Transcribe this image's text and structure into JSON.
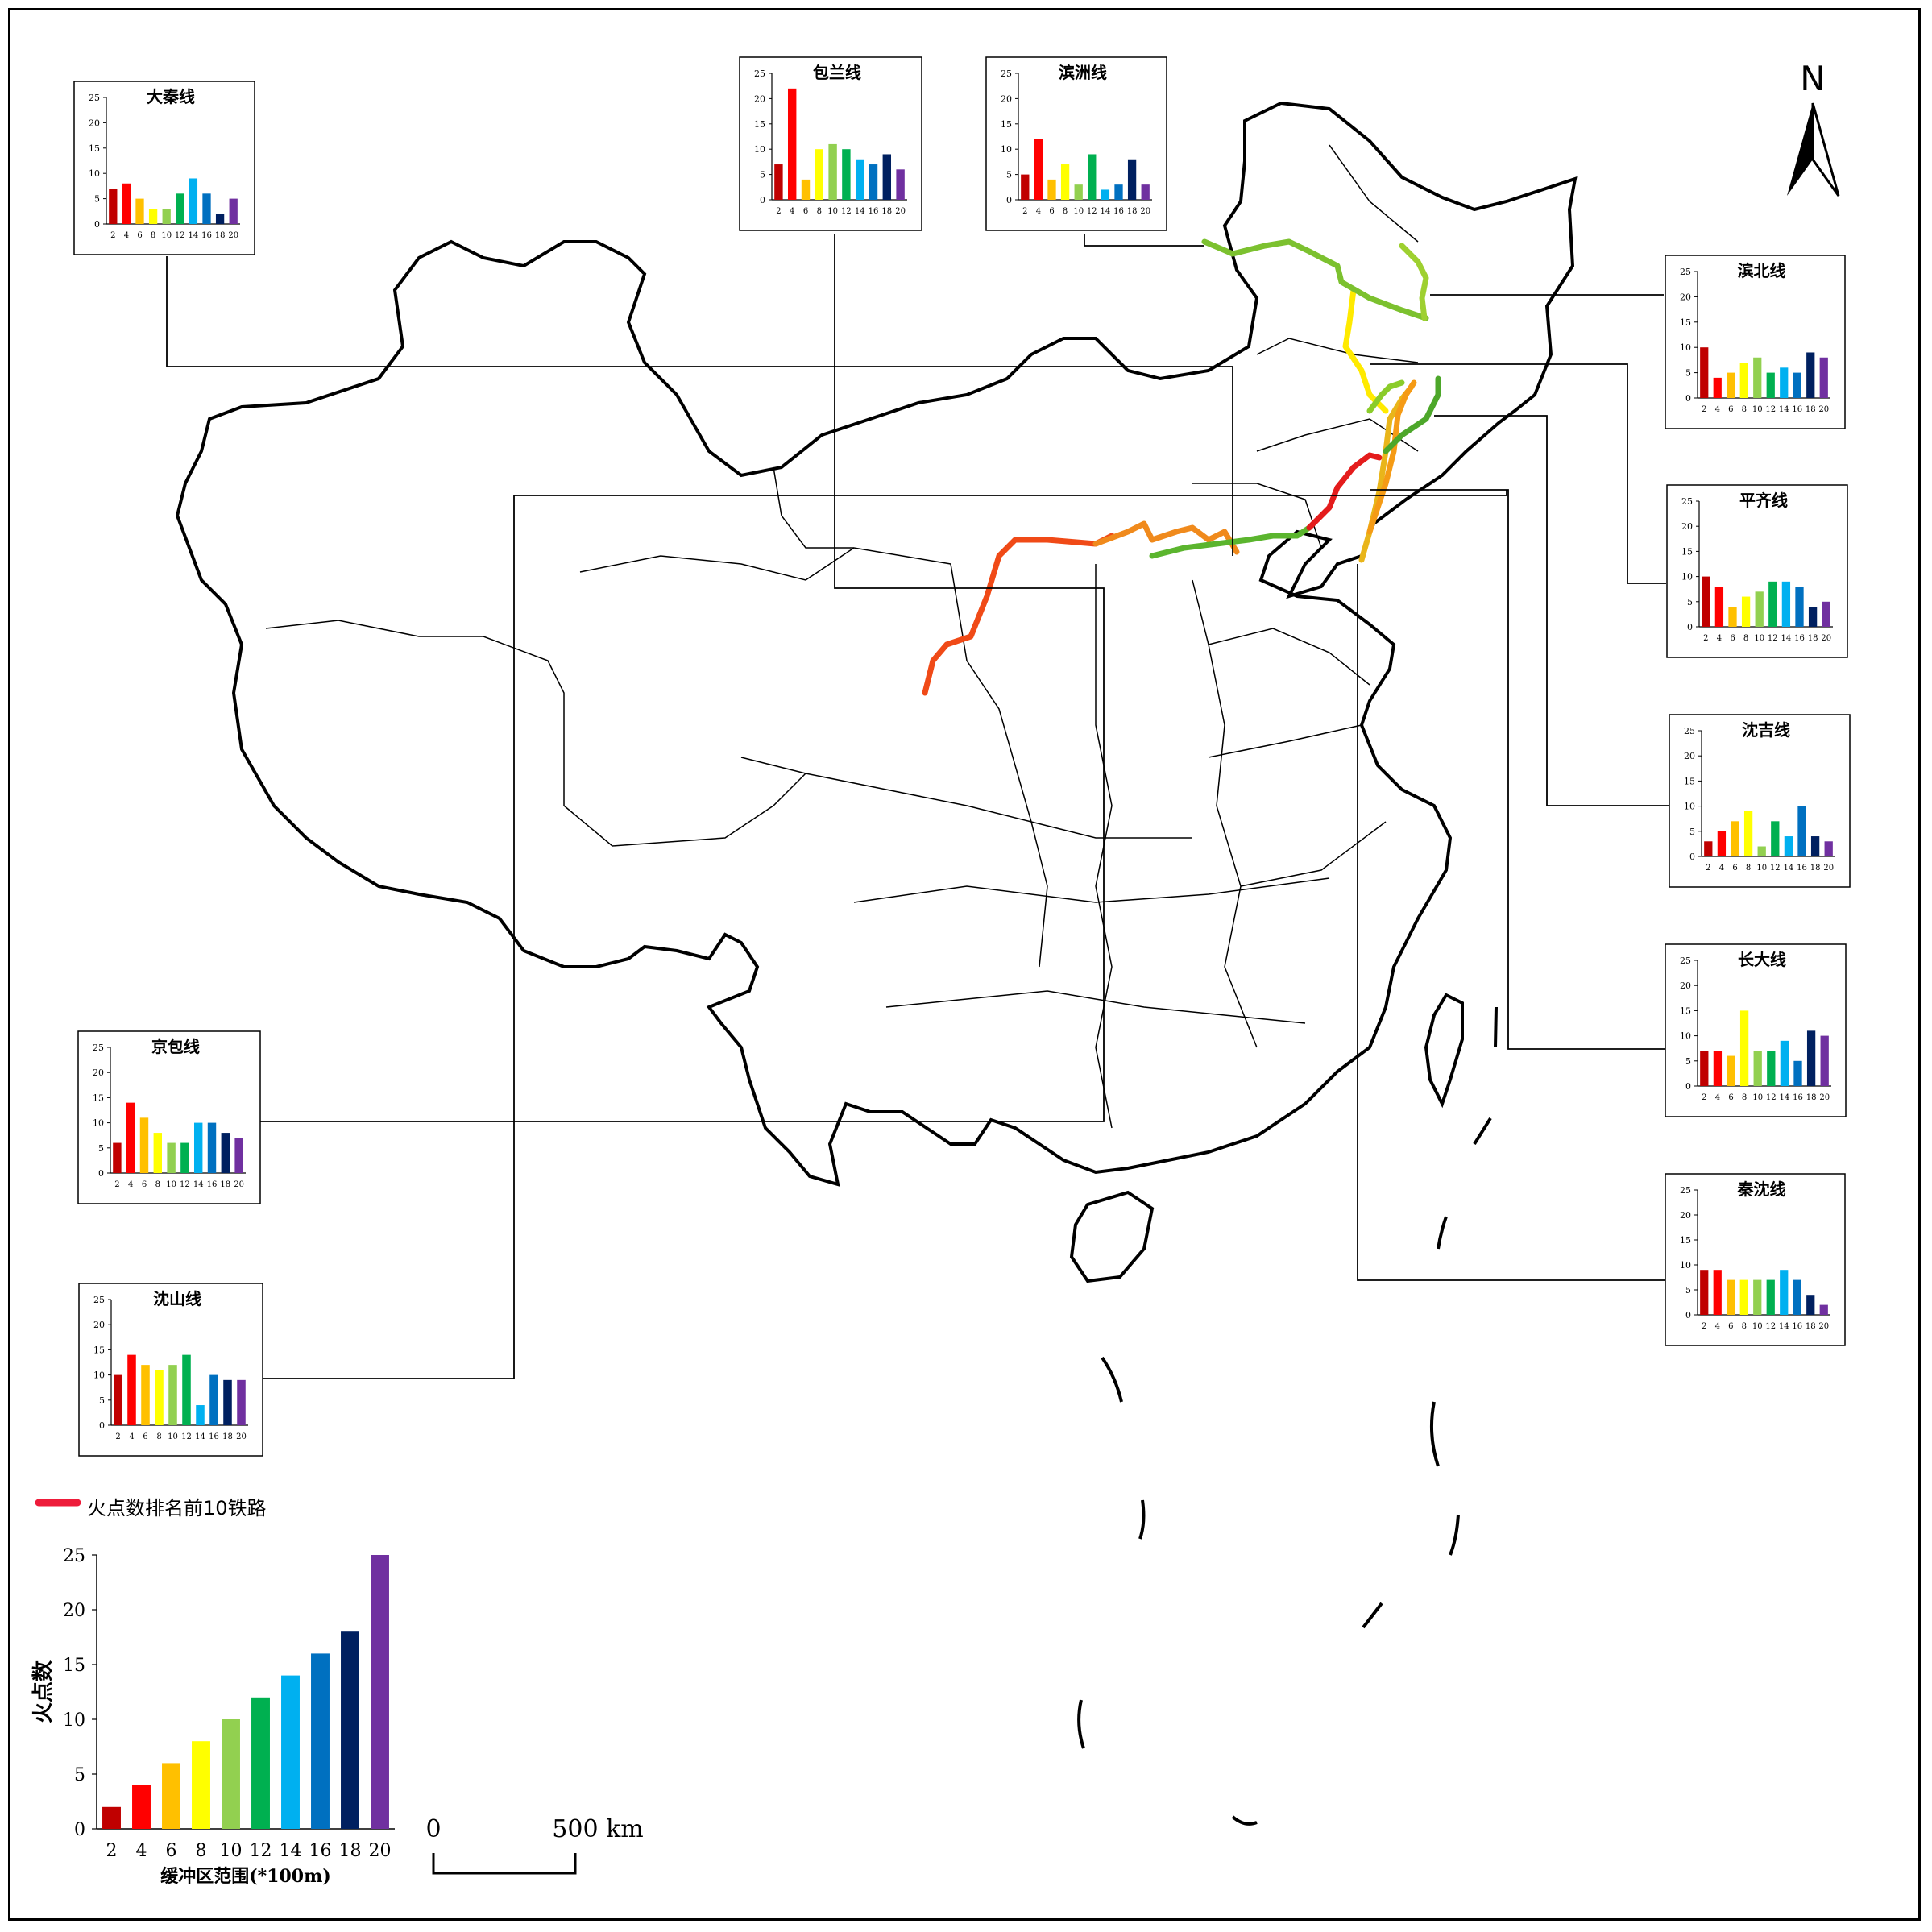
{
  "north_label": "N",
  "legend": {
    "line_label": "火点数排名前10铁路",
    "line_color": "#ee1c3a"
  },
  "scale_bar": {
    "zero": "0",
    "end": "500 km"
  },
  "palette": [
    "#c00000",
    "#ff0000",
    "#ffc000",
    "#ffff00",
    "#92d050",
    "#00b050",
    "#00b0f0",
    "#0070c0",
    "#002060",
    "#7030a0"
  ],
  "chart_data": [
    {
      "type": "bar",
      "title": "大秦线",
      "categories": [
        "2",
        "4",
        "6",
        "8",
        "10",
        "12",
        "14",
        "16",
        "18",
        "20"
      ],
      "values": [
        7,
        8,
        5,
        3,
        3,
        6,
        9,
        6,
        2,
        5
      ],
      "ylim": [
        0,
        25
      ],
      "yticks": [
        0,
        5,
        10,
        15,
        20,
        25
      ]
    },
    {
      "type": "bar",
      "title": "包兰线",
      "categories": [
        "2",
        "4",
        "6",
        "8",
        "10",
        "12",
        "14",
        "16",
        "18",
        "20"
      ],
      "values": [
        7,
        22,
        4,
        10,
        11,
        10,
        8,
        7,
        9,
        6
      ],
      "ylim": [
        0,
        25
      ],
      "yticks": [
        0,
        5,
        10,
        15,
        20,
        25
      ]
    },
    {
      "type": "bar",
      "title": "滨洲线",
      "categories": [
        "2",
        "4",
        "6",
        "8",
        "10",
        "12",
        "14",
        "16",
        "18",
        "20"
      ],
      "values": [
        5,
        12,
        4,
        7,
        3,
        9,
        2,
        3,
        8,
        3
      ],
      "ylim": [
        0,
        25
      ],
      "yticks": [
        0,
        5,
        10,
        15,
        20,
        25
      ]
    },
    {
      "type": "bar",
      "title": "滨北线",
      "categories": [
        "2",
        "4",
        "6",
        "8",
        "10",
        "12",
        "14",
        "16",
        "18",
        "20"
      ],
      "values": [
        10,
        4,
        5,
        7,
        8,
        5,
        6,
        5,
        9,
        8
      ],
      "ylim": [
        0,
        25
      ],
      "yticks": [
        0,
        5,
        10,
        15,
        20,
        25
      ]
    },
    {
      "type": "bar",
      "title": "平齐线",
      "categories": [
        "2",
        "4",
        "6",
        "8",
        "10",
        "12",
        "14",
        "16",
        "18",
        "20"
      ],
      "values": [
        10,
        8,
        4,
        6,
        7,
        9,
        9,
        8,
        4,
        5
      ],
      "ylim": [
        0,
        25
      ],
      "yticks": [
        0,
        5,
        10,
        15,
        20,
        25
      ]
    },
    {
      "type": "bar",
      "title": "沈吉线",
      "categories": [
        "2",
        "4",
        "6",
        "8",
        "10",
        "12",
        "14",
        "16",
        "18",
        "20"
      ],
      "values": [
        3,
        5,
        7,
        9,
        2,
        7,
        4,
        10,
        4,
        3
      ],
      "ylim": [
        0,
        25
      ],
      "yticks": [
        0,
        5,
        10,
        15,
        20,
        25
      ]
    },
    {
      "type": "bar",
      "title": "长大线",
      "categories": [
        "2",
        "4",
        "6",
        "8",
        "10",
        "12",
        "14",
        "16",
        "18",
        "20"
      ],
      "values": [
        7,
        7,
        6,
        15,
        7,
        7,
        9,
        5,
        11,
        10
      ],
      "ylim": [
        0,
        25
      ],
      "yticks": [
        0,
        5,
        10,
        15,
        20,
        25
      ]
    },
    {
      "type": "bar",
      "title": "秦沈线",
      "categories": [
        "2",
        "4",
        "6",
        "8",
        "10",
        "12",
        "14",
        "16",
        "18",
        "20"
      ],
      "values": [
        9,
        9,
        7,
        7,
        7,
        7,
        9,
        7,
        4,
        2
      ],
      "ylim": [
        0,
        25
      ],
      "yticks": [
        0,
        5,
        10,
        15,
        20,
        25
      ]
    },
    {
      "type": "bar",
      "title": "京包线",
      "categories": [
        "2",
        "4",
        "6",
        "8",
        "10",
        "12",
        "14",
        "16",
        "18",
        "20"
      ],
      "values": [
        6,
        14,
        11,
        8,
        6,
        6,
        10,
        10,
        8,
        7
      ],
      "ylim": [
        0,
        25
      ],
      "yticks": [
        0,
        5,
        10,
        15,
        20,
        25
      ]
    },
    {
      "type": "bar",
      "title": "沈山线",
      "categories": [
        "2",
        "4",
        "6",
        "8",
        "10",
        "12",
        "14",
        "16",
        "18",
        "20"
      ],
      "values": [
        10,
        14,
        12,
        11,
        12,
        14,
        4,
        10,
        9,
        9
      ],
      "ylim": [
        0,
        25
      ],
      "yticks": [
        0,
        5,
        10,
        15,
        20,
        25
      ]
    },
    {
      "type": "bar",
      "title": "",
      "xlabel": "缓冲区范围(*100m)",
      "ylabel": "火点数",
      "categories": [
        "2",
        "4",
        "6",
        "8",
        "10",
        "12",
        "14",
        "16",
        "18",
        "20"
      ],
      "values": [
        2,
        4,
        6,
        8,
        10,
        12,
        14,
        16,
        18,
        25
      ],
      "ylim": [
        0,
        25
      ],
      "yticks": [
        0,
        5,
        10,
        15,
        20,
        25
      ]
    }
  ]
}
